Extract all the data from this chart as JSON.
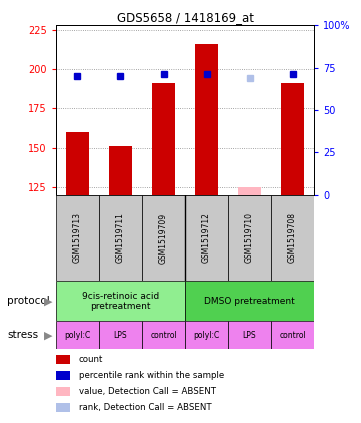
{
  "title": "GDS5658 / 1418169_at",
  "samples": [
    "GSM1519713",
    "GSM1519711",
    "GSM1519709",
    "GSM1519712",
    "GSM1519710",
    "GSM1519708"
  ],
  "count_values": [
    160,
    151,
    191,
    216,
    125,
    191
  ],
  "count_absent": [
    false,
    false,
    false,
    false,
    true,
    false
  ],
  "rank_values": [
    70,
    70,
    71,
    71,
    69,
    71
  ],
  "rank_absent": [
    false,
    false,
    false,
    false,
    true,
    false
  ],
  "ylim_left": [
    120,
    228
  ],
  "ylim_right": [
    0,
    100
  ],
  "yticks_left": [
    125,
    150,
    175,
    200,
    225
  ],
  "yticks_right": [
    0,
    25,
    50,
    75,
    100
  ],
  "protocol_labels": [
    "9cis-retinoic acid\npretreatment",
    "DMSO pretreatment"
  ],
  "protocol_colors": [
    "#90ee90",
    "#50d050"
  ],
  "stress_labels": [
    "polyI:C",
    "LPS",
    "control",
    "polyI:C",
    "LPS",
    "control"
  ],
  "stress_color": "#ee82ee",
  "bar_color_present": "#cc0000",
  "bar_color_absent": "#ffb6c1",
  "rank_color_present": "#0000cc",
  "rank_color_absent": "#b0c0e8",
  "sample_area_color": "#c8c8c8",
  "grid_color": "#888888",
  "legend_items": [
    {
      "color": "#cc0000",
      "label": "count"
    },
    {
      "color": "#0000cc",
      "label": "percentile rank within the sample"
    },
    {
      "color": "#ffb6c1",
      "label": "value, Detection Call = ABSENT"
    },
    {
      "color": "#b0c0e8",
      "label": "rank, Detection Call = ABSENT"
    }
  ]
}
